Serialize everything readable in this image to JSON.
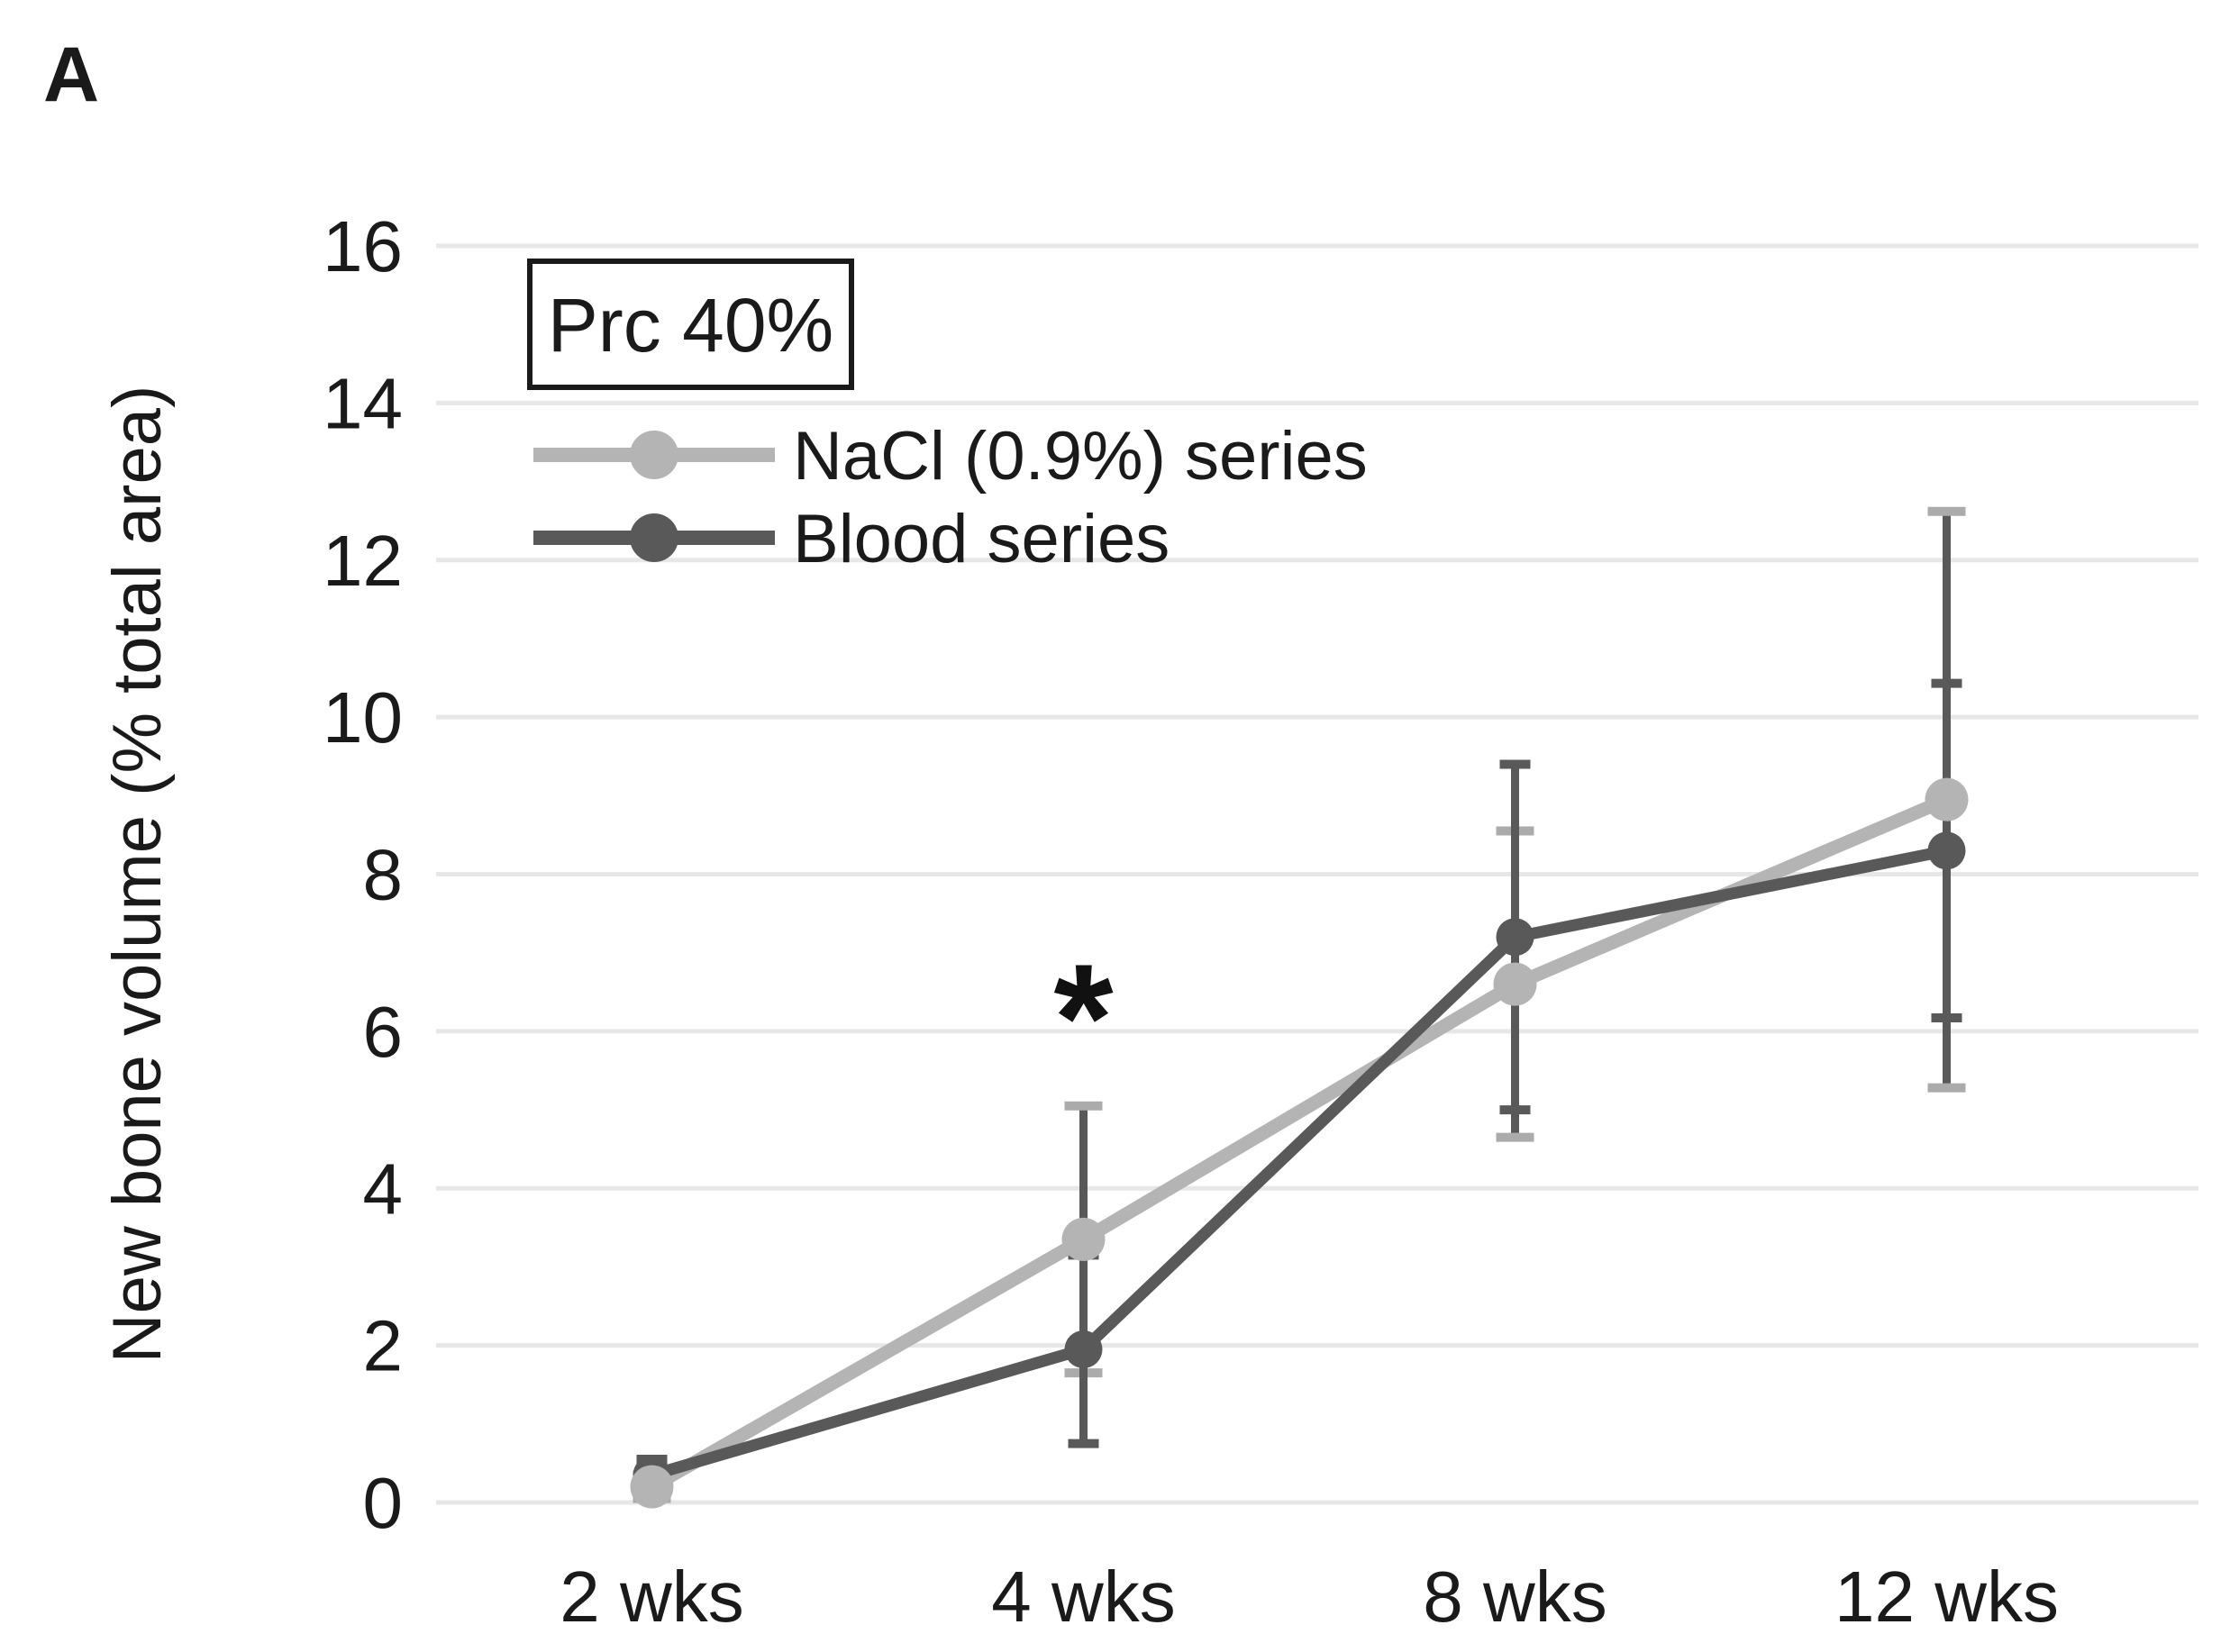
{
  "panel_label": "A",
  "title_box_label": "Prc 40%",
  "chart_data": {
    "type": "line",
    "title": "Prc 40%",
    "categories": [
      "2 wks",
      "4 wks",
      "8 wks",
      "12 wks"
    ],
    "xlabel": "",
    "ylabel": "New bone volume (% total area)",
    "ylim": [
      0,
      16
    ],
    "yticks": [
      0,
      2,
      4,
      6,
      8,
      10,
      12,
      14,
      16
    ],
    "grid": true,
    "legend_position": "upper-left-inside",
    "error_bar_color": "#595959",
    "series": [
      {
        "name": "NaCl (0.9%) series",
        "color": "#b4b4b4",
        "cap_color": "#ababab",
        "marker": "circle",
        "values": [
          0.2,
          3.35,
          6.6,
          8.95
        ],
        "error": [
          0.15,
          1.7,
          1.95,
          3.67
        ]
      },
      {
        "name": "Blood series",
        "color": "#595959",
        "cap_color": "#595959",
        "marker": "circle",
        "values": [
          0.35,
          1.95,
          7.2,
          8.3
        ],
        "error": [
          0.2,
          1.2,
          2.2,
          2.13
        ]
      }
    ],
    "annotation": {
      "text": "*",
      "category": "4 wks",
      "category_index": 1,
      "y_value": 5.5
    }
  }
}
